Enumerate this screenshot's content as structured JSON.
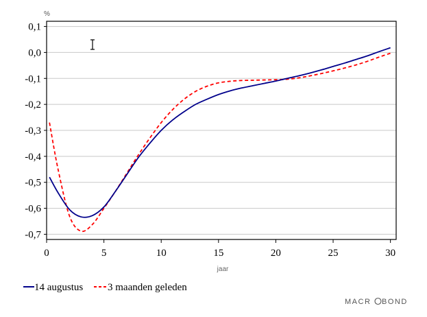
{
  "chart_data": {
    "type": "line",
    "xlabel": "jaar",
    "ylabel": "%",
    "xlim": [
      0,
      30.5
    ],
    "ylim": [
      -0.72,
      0.12
    ],
    "x_ticks": [
      "0",
      "5",
      "10",
      "15",
      "20",
      "25",
      "30"
    ],
    "y_ticks": [
      "0,1",
      "0,0",
      "-0,1",
      "-0,2",
      "-0,3",
      "-0,4",
      "-0,5",
      "-0,6",
      "-0,7"
    ],
    "grid": "horizontal",
    "legend_position": "bottom-left",
    "colors": {
      "series_1": "#00008B",
      "series_2": "#FF0000",
      "grid": "#c8c8c8",
      "frame": "#000000"
    },
    "series": [
      {
        "name": "14 augustus",
        "style": "solid",
        "x": [
          0.25,
          1,
          2,
          3,
          4,
          5,
          6,
          7,
          8,
          9,
          10,
          11,
          12,
          13,
          14,
          15,
          16,
          17,
          18,
          19,
          20,
          21,
          22,
          23,
          24,
          25,
          26,
          27,
          28,
          29,
          30
        ],
        "y": [
          -0.48,
          -0.54,
          -0.605,
          -0.633,
          -0.628,
          -0.595,
          -0.535,
          -0.47,
          -0.405,
          -0.35,
          -0.3,
          -0.26,
          -0.228,
          -0.2,
          -0.18,
          -0.162,
          -0.148,
          -0.137,
          -0.128,
          -0.119,
          -0.11,
          -0.1,
          -0.09,
          -0.079,
          -0.067,
          -0.054,
          -0.041,
          -0.027,
          -0.013,
          0.003,
          0.018
        ]
      },
      {
        "name": "3 maanden geleden",
        "style": "dashed",
        "x": [
          0.25,
          1,
          2,
          3,
          4,
          5,
          6,
          7,
          8,
          9,
          10,
          11,
          12,
          13,
          14,
          15,
          16,
          17,
          18,
          19,
          20,
          21,
          22,
          23,
          24,
          25,
          26,
          27,
          28,
          29,
          30
        ],
        "y": [
          -0.27,
          -0.45,
          -0.63,
          -0.688,
          -0.662,
          -0.6,
          -0.535,
          -0.465,
          -0.395,
          -0.33,
          -0.27,
          -0.22,
          -0.18,
          -0.15,
          -0.13,
          -0.117,
          -0.111,
          -0.108,
          -0.107,
          -0.106,
          -0.105,
          -0.103,
          -0.098,
          -0.09,
          -0.081,
          -0.071,
          -0.06,
          -0.048,
          -0.034,
          -0.018,
          -0.003
        ]
      }
    ]
  },
  "ui": {
    "cursor_icon": "text-cursor-icon",
    "brand_text": "MACROBOND"
  }
}
